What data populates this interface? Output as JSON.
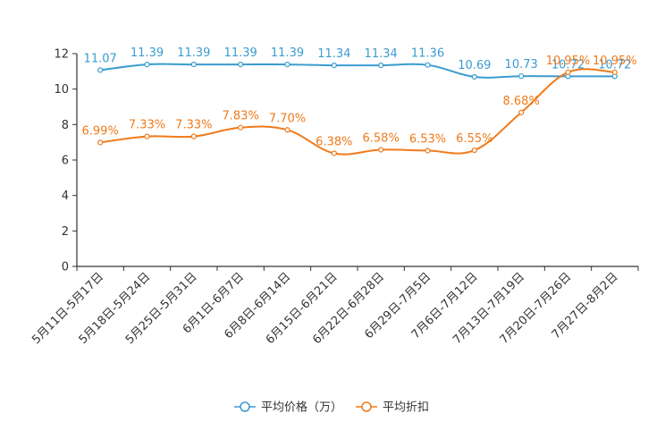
{
  "chart_data": {
    "type": "line",
    "title": "",
    "xlabel": "",
    "ylabel": "",
    "ylim": [
      0,
      12
    ],
    "yticks": [
      0,
      2,
      4,
      6,
      8,
      10,
      12
    ],
    "ytick_labels": [
      "0",
      "2",
      "4",
      "6",
      "8",
      "10",
      "12"
    ],
    "grid": false,
    "legend_position": "bottom-center",
    "categories": [
      "5月11日-5月17日",
      "5月18日-5月24日",
      "5月25日-5月31日",
      "6月1日-6月7日",
      "6月8日-6月14日",
      "6月15日-6月21日",
      "6月22日-6月28日",
      "6月29日-7月5日",
      "7月6日-7月12日",
      "7月13日-7月19日",
      "7月20日-7月26日",
      "7月27日-8月2日"
    ],
    "series": [
      {
        "name": "平均价格（万）",
        "color": "#3a9ccf",
        "values": [
          11.07,
          11.39,
          11.39,
          11.39,
          11.39,
          11.34,
          11.34,
          11.36,
          10.69,
          10.73,
          10.72,
          10.72
        ],
        "labels": [
          "11.07",
          "11.39",
          "11.39",
          "11.39",
          "11.39",
          "11.34",
          "11.34",
          "11.36",
          "10.69",
          "10.73",
          "10.72",
          "10.72"
        ]
      },
      {
        "name": "平均折扣",
        "color": "#f07a1a",
        "values": [
          6.99,
          7.33,
          7.33,
          7.83,
          7.7,
          6.38,
          6.58,
          6.53,
          6.55,
          8.68,
          10.95,
          10.95
        ],
        "labels": [
          "6.99%",
          "7.33%",
          "7.33%",
          "7.83%",
          "7.70%",
          "6.38%",
          "6.58%",
          "6.53%",
          "6.55%",
          "8.68%",
          "10.95%",
          "10.95%"
        ]
      }
    ]
  }
}
